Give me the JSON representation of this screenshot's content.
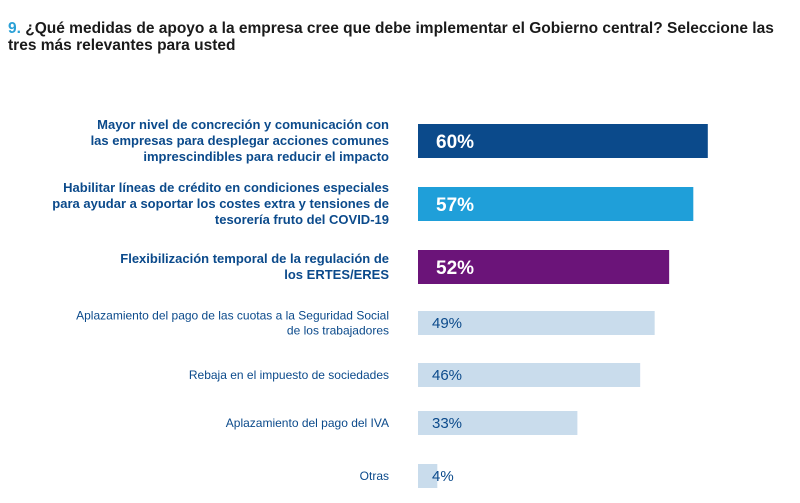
{
  "question": {
    "number": "9.",
    "text": "¿Qué medidas de apoyo a la empresa cree que debe implementar el Gobierno central? Seleccione las tres más relevantes para usted"
  },
  "chart_data": {
    "type": "bar",
    "orientation": "horizontal",
    "title": "9. ¿Qué medidas de apoyo a la empresa cree que debe implementar el Gobierno central? Seleccione las tres más relevantes para usted",
    "xlim": [
      0,
      100
    ],
    "grid": false,
    "categories": [
      [
        "Mayor nivel de concreción y comunicación con",
        "las empresas para desplegar acciones comunes",
        "imprescindibles para reducir el impacto"
      ],
      [
        "Habilitar líneas de crédito en condiciones especiales",
        "para ayudar a soportar los costes extra y tensiones de",
        "tesorería fruto del COVID-19"
      ],
      [
        "Flexibilización temporal de la regulación de",
        "los ERTES/ERES"
      ],
      [
        "Aplazamiento del pago de las cuotas a la Seguridad Social",
        "de los trabajadores"
      ],
      [
        "Rebaja en el impuesto de sociedades"
      ],
      [
        "Aplazamiento del pago del IVA"
      ],
      [
        "Otras"
      ]
    ],
    "values": [
      60,
      57,
      52,
      49,
      46,
      33,
      4
    ],
    "value_labels": [
      "60%",
      "57%",
      "52%",
      "49%",
      "46%",
      "33%",
      "4%"
    ],
    "bar_colors": [
      "#0b4a8b",
      "#1f9fd9",
      "#6b1479",
      "#c9dcec",
      "#c9dcec",
      "#c9dcec",
      "#c9dcec"
    ],
    "highlighted": [
      true,
      true,
      true,
      false,
      false,
      false,
      false
    ]
  },
  "colors": {
    "label_text": "#0b4a8b",
    "value_light_text": "#0b4a8b",
    "value_dark_text": "#ffffff",
    "accent_number": "#2aa0d6"
  }
}
